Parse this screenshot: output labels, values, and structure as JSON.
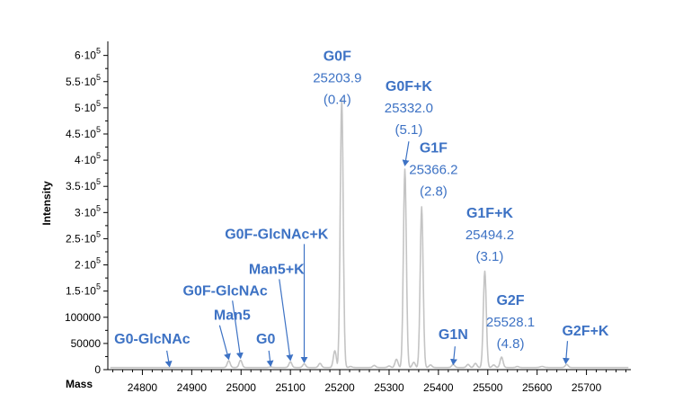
{
  "chart_data": {
    "type": "line",
    "title": "",
    "xlabel": "Mass",
    "ylabel": "Intensity",
    "xlim": [
      24730,
      25790
    ],
    "ylim": [
      0,
      620000
    ],
    "x_ticks": [
      24800,
      24900,
      25000,
      25100,
      25200,
      25300,
      25400,
      25500,
      25600,
      25700
    ],
    "x_tick_labels": [
      "24800",
      "24900",
      "25000",
      "25100",
      "25200",
      "25300",
      "25400",
      "25500",
      "25600",
      "25700"
    ],
    "y_ticks": [
      0,
      50000,
      100000,
      150000,
      200000,
      250000,
      300000,
      350000,
      400000,
      450000,
      500000,
      550000,
      600000
    ],
    "y_tick_labels": [
      {
        "base": "0",
        "exp": ""
      },
      {
        "base": "50000",
        "exp": ""
      },
      {
        "base": "100000",
        "exp": ""
      },
      {
        "base": "1.5·10",
        "exp": "5"
      },
      {
        "base": "2·10",
        "exp": "5"
      },
      {
        "base": "2.5·10",
        "exp": "5"
      },
      {
        "base": "3·10",
        "exp": "5"
      },
      {
        "base": "3.5·10",
        "exp": "5"
      },
      {
        "base": "4·10",
        "exp": "5"
      },
      {
        "base": "4.5·10",
        "exp": "5"
      },
      {
        "base": "5·10",
        "exp": "5"
      },
      {
        "base": "5.5·10",
        "exp": "5"
      },
      {
        "base": "6·10",
        "exp": "5"
      }
    ],
    "series": [
      {
        "baseline": 4000,
        "peaks": [
          {
            "x": 24855,
            "y": 4000,
            "w": 3
          },
          {
            "x": 24975,
            "y": 17000,
            "w": 3
          },
          {
            "x": 24999,
            "y": 18000,
            "w": 3
          },
          {
            "x": 25060,
            "y": 5000,
            "w": 3
          },
          {
            "x": 25100,
            "y": 15000,
            "w": 3
          },
          {
            "x": 25128,
            "y": 11000,
            "w": 3
          },
          {
            "x": 25160,
            "y": 12000,
            "w": 3
          },
          {
            "x": 25190,
            "y": 36000,
            "w": 3
          },
          {
            "x": 25204,
            "y": 516000,
            "w": 3
          },
          {
            "x": 25222,
            "y": 6000,
            "w": 3
          },
          {
            "x": 25270,
            "y": 8000,
            "w": 3
          },
          {
            "x": 25300,
            "y": 7000,
            "w": 3
          },
          {
            "x": 25315,
            "y": 20000,
            "w": 3
          },
          {
            "x": 25332,
            "y": 383000,
            "w": 3
          },
          {
            "x": 25350,
            "y": 14000,
            "w": 3
          },
          {
            "x": 25366,
            "y": 311000,
            "w": 3
          },
          {
            "x": 25384,
            "y": 9000,
            "w": 3
          },
          {
            "x": 25430,
            "y": 10000,
            "w": 3
          },
          {
            "x": 25460,
            "y": 10000,
            "w": 3
          },
          {
            "x": 25475,
            "y": 12000,
            "w": 3
          },
          {
            "x": 25494,
            "y": 188000,
            "w": 3
          },
          {
            "x": 25512,
            "y": 9000,
            "w": 3
          },
          {
            "x": 25528,
            "y": 24000,
            "w": 3
          },
          {
            "x": 25560,
            "y": 6000,
            "w": 3
          },
          {
            "x": 25610,
            "y": 6000,
            "w": 4
          },
          {
            "x": 25660,
            "y": 10000,
            "w": 3
          },
          {
            "x": 25700,
            "y": 4000,
            "w": 3
          }
        ]
      }
    ],
    "annotations": [
      {
        "name": "G0-GlcNAc",
        "detail": [],
        "target": {
          "x": 24855,
          "y": 6000
        },
        "text": {
          "x": 24820,
          "y": 50000
        }
      },
      {
        "name": "Man5",
        "detail": [],
        "target": {
          "x": 24975,
          "y": 20000
        },
        "text": {
          "x": 24982,
          "y": 95000
        }
      },
      {
        "name": "G0F-GlcNAc",
        "detail": [],
        "target": {
          "x": 24999,
          "y": 22000
        },
        "text": {
          "x": 24968,
          "y": 142000
        }
      },
      {
        "name": "G0",
        "detail": [],
        "target": {
          "x": 25060,
          "y": 7000
        },
        "text": {
          "x": 25050,
          "y": 50000
        }
      },
      {
        "name": "Man5+K",
        "detail": [],
        "target": {
          "x": 25100,
          "y": 18000
        },
        "text": {
          "x": 25072,
          "y": 183000
        }
      },
      {
        "name": "G0F-GlcNAc+K",
        "detail": [],
        "target": {
          "x": 25128,
          "y": 14000
        },
        "text": {
          "x": 25072,
          "y": 250000
        }
      },
      {
        "name": "G0F",
        "detail": [
          "25203.9",
          "(0.4)"
        ],
        "target": null,
        "text": {
          "x": 25195,
          "y": 590000
        }
      },
      {
        "name": "G0F+K",
        "detail": [
          "25332.0",
          "(5.1)"
        ],
        "target": {
          "x": 25332,
          "y": 390000
        },
        "text": {
          "x": 25340,
          "y": 532000
        }
      },
      {
        "name": "G1F",
        "detail": [
          "25366.2",
          "(2.8)"
        ],
        "target": null,
        "text": {
          "x": 25390,
          "y": 415000
        }
      },
      {
        "name": "G1F+K",
        "detail": [
          "25494.2",
          "(3.1)"
        ],
        "target": null,
        "text": {
          "x": 25504,
          "y": 290000
        }
      },
      {
        "name": "G1N",
        "detail": [],
        "target": {
          "x": 25430,
          "y": 10000
        },
        "text": {
          "x": 25430,
          "y": 58000
        }
      },
      {
        "name": "G2F",
        "detail": [
          "25528.1",
          "(4.8)"
        ],
        "target": null,
        "text": {
          "x": 25546,
          "y": 124000
        }
      },
      {
        "name": "G2F+K",
        "detail": [],
        "target": {
          "x": 25658,
          "y": 12000
        },
        "text": {
          "x": 25698,
          "y": 65000
        }
      }
    ],
    "colors": {
      "line": "#c4c4c4",
      "annotation": "#3d72c4",
      "axis": "#000000"
    }
  }
}
